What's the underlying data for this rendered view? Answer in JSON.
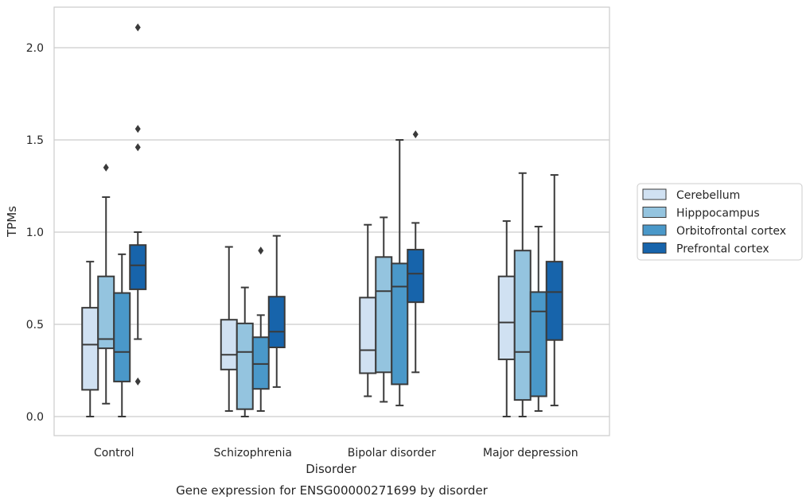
{
  "chart_data": {
    "type": "boxplot",
    "title": "Gene expression for ENSG00000271699 by disorder",
    "xlabel": "Disorder",
    "ylabel": "TPMs",
    "ylim": [
      -0.1,
      2.22
    ],
    "yticks": [
      0.0,
      0.5,
      1.0,
      1.5,
      2.0
    ],
    "ytick_labels": [
      "0.0",
      "0.5",
      "1.0",
      "1.5",
      "2.0"
    ],
    "grid": "horizontal",
    "legend_position": "right",
    "categories": [
      "Control",
      "Schizophrenia",
      "Bipolar disorder",
      "Major depression"
    ],
    "series": [
      {
        "name": "Cerebellum",
        "color": "#d0e1f2",
        "boxes": [
          {
            "whislo": 0.0,
            "q1": 0.145,
            "med": 0.39,
            "q3": 0.59,
            "whishi": 0.84,
            "fliers": []
          },
          {
            "whislo": 0.03,
            "q1": 0.255,
            "med": 0.335,
            "q3": 0.525,
            "whishi": 0.92,
            "fliers": []
          },
          {
            "whislo": 0.11,
            "q1": 0.235,
            "med": 0.36,
            "q3": 0.645,
            "whishi": 1.04,
            "fliers": []
          },
          {
            "whislo": 0.0,
            "q1": 0.31,
            "med": 0.51,
            "q3": 0.76,
            "whishi": 1.06,
            "fliers": []
          }
        ]
      },
      {
        "name": "Hipppocampus",
        "color": "#94c4df",
        "boxes": [
          {
            "whislo": 0.07,
            "q1": 0.37,
            "med": 0.42,
            "q3": 0.76,
            "whishi": 1.19,
            "fliers": [
              1.35
            ]
          },
          {
            "whislo": 0.0,
            "q1": 0.04,
            "med": 0.35,
            "q3": 0.505,
            "whishi": 0.7,
            "fliers": []
          },
          {
            "whislo": 0.08,
            "q1": 0.24,
            "med": 0.68,
            "q3": 0.865,
            "whishi": 1.08,
            "fliers": []
          },
          {
            "whislo": 0.0,
            "q1": 0.09,
            "med": 0.35,
            "q3": 0.9,
            "whishi": 1.32,
            "fliers": []
          }
        ]
      },
      {
        "name": "Orbitofrontal cortex",
        "color": "#4a98c9",
        "boxes": [
          {
            "whislo": 0.0,
            "q1": 0.19,
            "med": 0.35,
            "q3": 0.67,
            "whishi": 0.88,
            "fliers": []
          },
          {
            "whislo": 0.03,
            "q1": 0.15,
            "med": 0.285,
            "q3": 0.43,
            "whishi": 0.55,
            "fliers": [
              0.9
            ]
          },
          {
            "whislo": 0.06,
            "q1": 0.175,
            "med": 0.705,
            "q3": 0.83,
            "whishi": 1.5,
            "fliers": []
          },
          {
            "whislo": 0.03,
            "q1": 0.11,
            "med": 0.57,
            "q3": 0.675,
            "whishi": 1.03,
            "fliers": []
          }
        ]
      },
      {
        "name": "Prefrontal cortex",
        "color": "#1764ab",
        "boxes": [
          {
            "whislo": 0.42,
            "q1": 0.69,
            "med": 0.82,
            "q3": 0.93,
            "whishi": 1.0,
            "fliers": [
              0.19,
              1.46,
              1.56,
              2.11
            ]
          },
          {
            "whislo": 0.16,
            "q1": 0.375,
            "med": 0.46,
            "q3": 0.65,
            "whishi": 0.98,
            "fliers": []
          },
          {
            "whislo": 0.24,
            "q1": 0.62,
            "med": 0.775,
            "q3": 0.905,
            "whishi": 1.05,
            "fliers": [
              1.53
            ]
          },
          {
            "whislo": 0.06,
            "q1": 0.415,
            "med": 0.675,
            "q3": 0.84,
            "whishi": 1.31,
            "fliers": []
          }
        ]
      }
    ]
  }
}
